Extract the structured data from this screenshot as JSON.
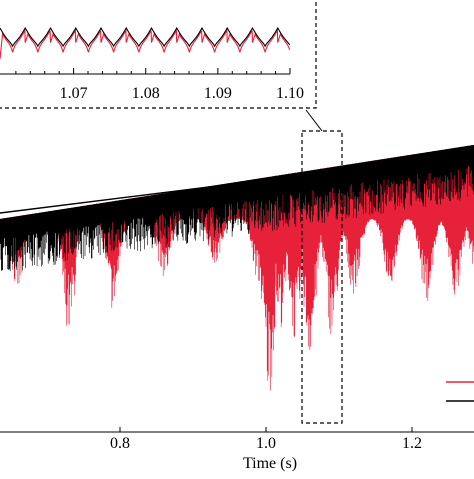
{
  "chart_data": {
    "type": "line",
    "main": {
      "xlabel": "Time (s)",
      "x_ticks": [
        0.8,
        1.0,
        1.2
      ],
      "x_tick_labels": [
        "0.8",
        "1.0",
        "1.2"
      ],
      "xlim": [
        0.6,
        1.3
      ],
      "series": [
        {
          "name": "",
          "color": "#e8213a",
          "envelope_top": [
            [
              0.62,
              0.8
            ],
            [
              1.3,
              1.0
            ]
          ],
          "deep_dips": [
            [
              0.66,
              0.45
            ],
            [
              0.73,
              0.3
            ],
            [
              0.79,
              0.39
            ],
            [
              0.86,
              0.5
            ],
            [
              0.93,
              0.55
            ],
            [
              0.99,
              0.48
            ],
            [
              1.004,
              0.08
            ],
            [
              1.02,
              0.33
            ],
            [
              1.04,
              0.28
            ],
            [
              1.06,
              0.22
            ],
            [
              1.09,
              0.3
            ],
            [
              1.12,
              0.45
            ],
            [
              1.17,
              0.48
            ],
            [
              1.22,
              0.42
            ],
            [
              1.26,
              0.43
            ],
            [
              1.29,
              0.46
            ]
          ]
        },
        {
          "name": "",
          "color": "#000000",
          "envelope_top": [
            [
              0.62,
              0.8
            ],
            [
              1.3,
              1.0
            ]
          ]
        }
      ],
      "zoom_box_x": [
        1.05,
        1.1
      ]
    },
    "inset": {
      "x_ticks": [
        1.07,
        1.08,
        1.09,
        1.1
      ],
      "x_tick_labels": [
        "1.07",
        "1.08",
        "1.09",
        "1.10"
      ],
      "xlim": [
        1.0598,
        1.1
      ]
    }
  }
}
